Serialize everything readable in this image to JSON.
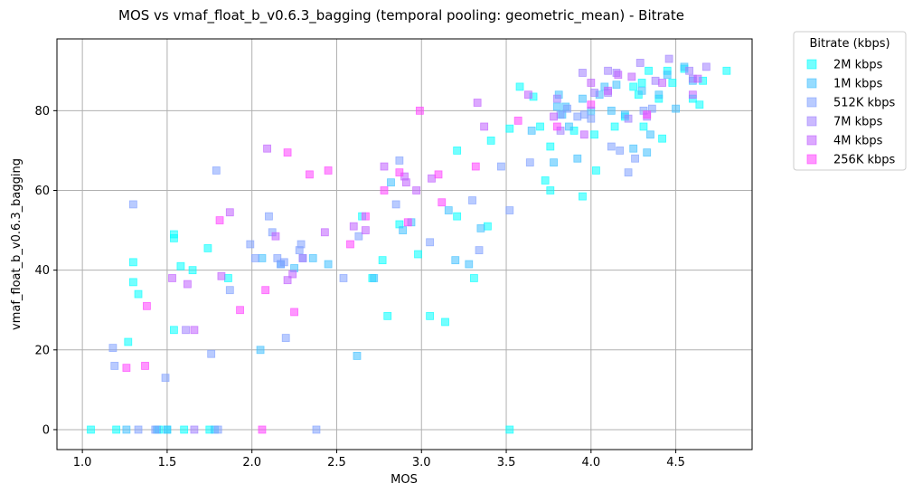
{
  "chart_data": {
    "type": "scatter",
    "title": "MOS vs vmaf_float_b_v0.6.3_bagging (temporal pooling: geometric_mean) - Bitrate",
    "xlabel": "MOS",
    "ylabel": "vmaf_float_b_v0.6.3_bagging",
    "xlim": [
      0.85,
      4.95
    ],
    "ylim": [
      -5,
      98
    ],
    "xticks": [
      "1.0",
      "1.5",
      "2.0",
      "2.5",
      "3.0",
      "3.5",
      "4.0",
      "4.5"
    ],
    "xtick_values": [
      1.0,
      1.5,
      2.0,
      2.5,
      3.0,
      3.5,
      4.0,
      4.5
    ],
    "yticks": [
      "0",
      "20",
      "40",
      "60",
      "80"
    ],
    "ytick_values": [
      0,
      20,
      40,
      60,
      80
    ],
    "grid": true,
    "legend_title": "Bitrate (kbps)",
    "legend_position": "outside-top-right",
    "marker": "square",
    "series": [
      {
        "name": "2M kbps",
        "color": "#00ffff",
        "points": [
          [
            1.05,
            0
          ],
          [
            1.2,
            0
          ],
          [
            1.27,
            22
          ],
          [
            1.3,
            42
          ],
          [
            1.3,
            37
          ],
          [
            1.33,
            34
          ],
          [
            1.45,
            0
          ],
          [
            1.5,
            0
          ],
          [
            1.54,
            49
          ],
          [
            1.54,
            48
          ],
          [
            1.54,
            25
          ],
          [
            1.58,
            41
          ],
          [
            1.6,
            0
          ],
          [
            1.65,
            40
          ],
          [
            1.74,
            45.5
          ],
          [
            1.75,
            0
          ],
          [
            1.86,
            38
          ],
          [
            2.65,
            53.5
          ],
          [
            2.71,
            38
          ],
          [
            2.77,
            42.5
          ],
          [
            2.8,
            28.5
          ],
          [
            2.87,
            51.5
          ],
          [
            2.98,
            44
          ],
          [
            3.05,
            28.5
          ],
          [
            3.14,
            27
          ],
          [
            3.21,
            70
          ],
          [
            3.21,
            53.5
          ],
          [
            3.31,
            38
          ],
          [
            3.39,
            51
          ],
          [
            3.41,
            72.5
          ],
          [
            3.52,
            0
          ],
          [
            3.52,
            75.5
          ],
          [
            3.58,
            86
          ],
          [
            3.66,
            83.5
          ],
          [
            3.7,
            76
          ],
          [
            3.73,
            62.5
          ],
          [
            3.76,
            71
          ],
          [
            3.76,
            60
          ],
          [
            3.9,
            75
          ],
          [
            3.95,
            58.5
          ],
          [
            4.02,
            74
          ],
          [
            4.03,
            65
          ],
          [
            4.14,
            76
          ],
          [
            4.2,
            78.5
          ],
          [
            4.25,
            86
          ],
          [
            4.28,
            84
          ],
          [
            4.3,
            87
          ],
          [
            4.31,
            76
          ],
          [
            4.34,
            90
          ],
          [
            4.4,
            83
          ],
          [
            4.42,
            73
          ],
          [
            4.45,
            90
          ],
          [
            4.48,
            87
          ],
          [
            4.55,
            90.5
          ],
          [
            4.6,
            83
          ],
          [
            4.64,
            81.5
          ],
          [
            4.66,
            87.5
          ],
          [
            4.8,
            90
          ]
        ]
      },
      {
        "name": "1M kbps",
        "color": "#40c0ff",
        "points": [
          [
            1.26,
            0
          ],
          [
            1.44,
            0
          ],
          [
            1.5,
            0
          ],
          [
            1.78,
            0
          ],
          [
            2.05,
            20
          ],
          [
            2.06,
            43
          ],
          [
            2.17,
            41.5
          ],
          [
            2.25,
            40.5
          ],
          [
            2.36,
            43
          ],
          [
            2.45,
            41.5
          ],
          [
            2.62,
            18.5
          ],
          [
            2.72,
            38
          ],
          [
            2.82,
            62
          ],
          [
            2.89,
            50
          ],
          [
            2.94,
            52
          ],
          [
            3.16,
            55
          ],
          [
            3.2,
            42.5
          ],
          [
            3.28,
            41.5
          ],
          [
            3.35,
            50.5
          ],
          [
            3.65,
            75
          ],
          [
            3.78,
            67
          ],
          [
            3.8,
            81
          ],
          [
            3.81,
            84
          ],
          [
            3.83,
            79
          ],
          [
            3.85,
            81
          ],
          [
            3.87,
            76
          ],
          [
            3.92,
            68
          ],
          [
            3.95,
            83
          ],
          [
            4.0,
            80
          ],
          [
            4.05,
            84
          ],
          [
            4.08,
            86
          ],
          [
            4.12,
            80
          ],
          [
            4.15,
            86.5
          ],
          [
            4.2,
            79
          ],
          [
            4.25,
            70.5
          ],
          [
            4.3,
            85
          ],
          [
            4.33,
            69.5
          ],
          [
            4.35,
            74
          ],
          [
            4.4,
            84
          ],
          [
            4.45,
            89
          ],
          [
            4.5,
            80.5
          ],
          [
            4.55,
            91
          ],
          [
            4.6,
            87.5
          ]
        ]
      },
      {
        "name": "512K kbps",
        "color": "#80a0ff",
        "points": [
          [
            1.18,
            20.5
          ],
          [
            1.19,
            16
          ],
          [
            1.3,
            56.5
          ],
          [
            1.33,
            0
          ],
          [
            1.43,
            0
          ],
          [
            1.49,
            13
          ],
          [
            1.76,
            19
          ],
          [
            1.79,
            65
          ],
          [
            1.8,
            0
          ],
          [
            1.87,
            35
          ],
          [
            1.99,
            46.5
          ],
          [
            2.02,
            43
          ],
          [
            2.1,
            53.5
          ],
          [
            2.12,
            49.5
          ],
          [
            2.15,
            43
          ],
          [
            2.17,
            41.5
          ],
          [
            2.19,
            42
          ],
          [
            2.2,
            23
          ],
          [
            2.28,
            45
          ],
          [
            2.29,
            46.5
          ],
          [
            2.3,
            43
          ],
          [
            2.38,
            0
          ],
          [
            2.54,
            38
          ],
          [
            2.63,
            48.5
          ],
          [
            2.85,
            56.5
          ],
          [
            2.87,
            67.5
          ],
          [
            3.05,
            47
          ],
          [
            3.3,
            57.5
          ],
          [
            3.34,
            45
          ],
          [
            3.47,
            66
          ],
          [
            3.52,
            55
          ],
          [
            3.64,
            67
          ],
          [
            3.82,
            79
          ],
          [
            3.86,
            80.5
          ],
          [
            3.92,
            78.5
          ],
          [
            3.96,
            79
          ],
          [
            4.0,
            78
          ],
          [
            4.12,
            71
          ],
          [
            4.17,
            70
          ],
          [
            4.22,
            64.5
          ],
          [
            4.26,
            68
          ],
          [
            4.31,
            80
          ],
          [
            4.36,
            80.5
          ]
        ]
      },
      {
        "name": "7M kbps",
        "color": "#a080ff",
        "points": [
          [
            1.61,
            25
          ],
          [
            1.66,
            0
          ],
          [
            2.3,
            43
          ],
          [
            3.8,
            83
          ],
          [
            3.82,
            75
          ],
          [
            3.95,
            89.5
          ],
          [
            4.02,
            84.5
          ],
          [
            4.1,
            90
          ],
          [
            4.1,
            84.5
          ],
          [
            4.15,
            89.5
          ],
          [
            4.22,
            78
          ],
          [
            4.29,
            92
          ],
          [
            4.33,
            78.5
          ],
          [
            4.38,
            87.5
          ],
          [
            4.46,
            93
          ],
          [
            4.58,
            90
          ],
          [
            4.6,
            88
          ],
          [
            4.68,
            91
          ]
        ]
      },
      {
        "name": "4M kbps",
        "color": "#c060ff",
        "points": [
          [
            1.53,
            38
          ],
          [
            1.62,
            36.5
          ],
          [
            1.66,
            25
          ],
          [
            1.82,
            38.5
          ],
          [
            1.87,
            54.5
          ],
          [
            2.09,
            70.5
          ],
          [
            2.14,
            48.5
          ],
          [
            2.21,
            37.5
          ],
          [
            2.24,
            39
          ],
          [
            2.43,
            49.5
          ],
          [
            2.6,
            51
          ],
          [
            2.67,
            50
          ],
          [
            2.78,
            66
          ],
          [
            2.9,
            63.5
          ],
          [
            2.91,
            62
          ],
          [
            2.97,
            60
          ],
          [
            3.06,
            63
          ],
          [
            3.33,
            82
          ],
          [
            3.37,
            76
          ],
          [
            3.63,
            84
          ],
          [
            3.78,
            78.5
          ],
          [
            3.96,
            74
          ],
          [
            4.0,
            87
          ],
          [
            4.1,
            85
          ],
          [
            4.16,
            89
          ],
          [
            4.24,
            88.5
          ],
          [
            4.42,
            87
          ],
          [
            4.6,
            84
          ],
          [
            4.63,
            88
          ]
        ]
      },
      {
        "name": "256K kbps",
        "color": "#ff40ff",
        "points": [
          [
            1.26,
            15.5
          ],
          [
            1.37,
            16
          ],
          [
            1.38,
            31
          ],
          [
            1.81,
            52.5
          ],
          [
            1.93,
            30
          ],
          [
            2.06,
            0
          ],
          [
            2.08,
            35
          ],
          [
            2.21,
            69.5
          ],
          [
            2.25,
            29.5
          ],
          [
            2.34,
            64
          ],
          [
            2.45,
            65
          ],
          [
            2.58,
            46.5
          ],
          [
            2.67,
            53.5
          ],
          [
            2.78,
            60
          ],
          [
            2.87,
            64.5
          ],
          [
            2.92,
            52
          ],
          [
            2.99,
            80
          ],
          [
            3.1,
            64
          ],
          [
            3.12,
            57
          ],
          [
            3.32,
            66
          ],
          [
            3.57,
            77.5
          ],
          [
            3.8,
            76
          ],
          [
            4.0,
            81.5
          ],
          [
            4.33,
            79
          ]
        ]
      }
    ]
  }
}
